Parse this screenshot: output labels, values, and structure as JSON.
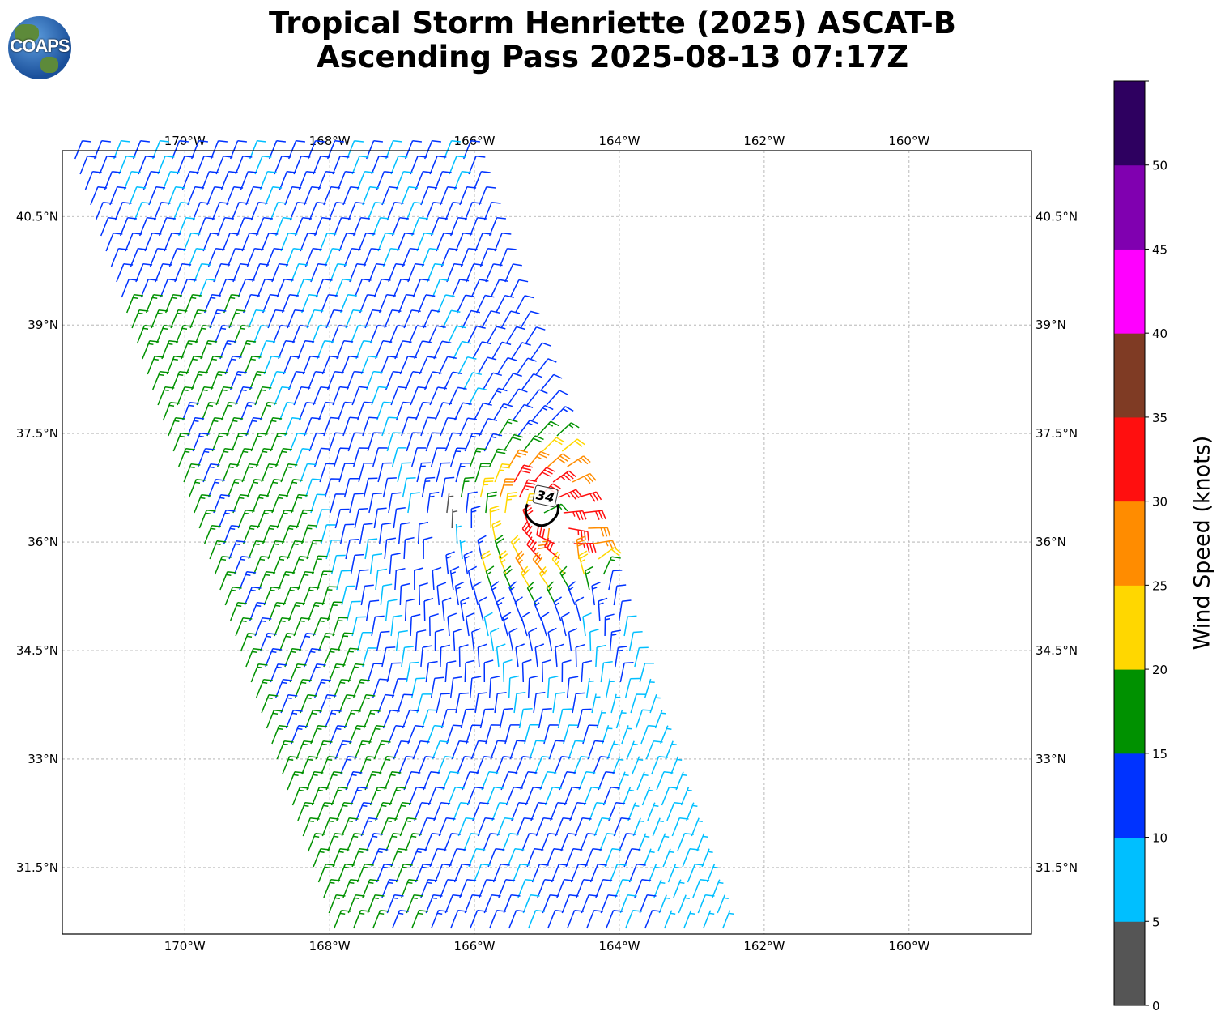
{
  "title_line1": "Tropical Storm Henriette (2025) ASCAT-B",
  "title_line2": "Ascending Pass 2025-08-13 07:17Z",
  "logo_text": "COAPS",
  "map": {
    "lon_range": [
      -171.69,
      -158.31
    ],
    "lat_range": [
      30.58,
      41.41
    ],
    "lon_ticks": [
      -170,
      -168,
      -166,
      -164,
      -162,
      -160
    ],
    "lon_labels": [
      "170°W",
      "168°W",
      "166°W",
      "164°W",
      "162°W",
      "160°W"
    ],
    "lat_ticks": [
      40.5,
      39,
      37.5,
      36,
      34.5,
      33,
      31.5
    ],
    "lat_labels": [
      "40.5°N",
      "39°N",
      "37.5°N",
      "36°N",
      "34.5°N",
      "33°N",
      "31.5°N"
    ],
    "storm_center": {
      "lon": -165.1,
      "lat": 36.3
    },
    "contour_label": "34",
    "wind_units": "knots"
  },
  "colorbar": {
    "label": "Wind Speed (knots)",
    "bounds": [
      0,
      5,
      10,
      15,
      20,
      25,
      30,
      35,
      40,
      45,
      50,
      55
    ],
    "colors": [
      "#555555",
      "#00bfff",
      "#0033ff",
      "#009100",
      "#ffd700",
      "#ff8c00",
      "#ff0f0f",
      "#7f3b24",
      "#ff00ff",
      "#8000b0",
      "#2e0060"
    ],
    "tick_labels": [
      "0",
      "5",
      "10",
      "15",
      "20",
      "25",
      "30",
      "35",
      "40",
      "45",
      "50"
    ]
  }
}
